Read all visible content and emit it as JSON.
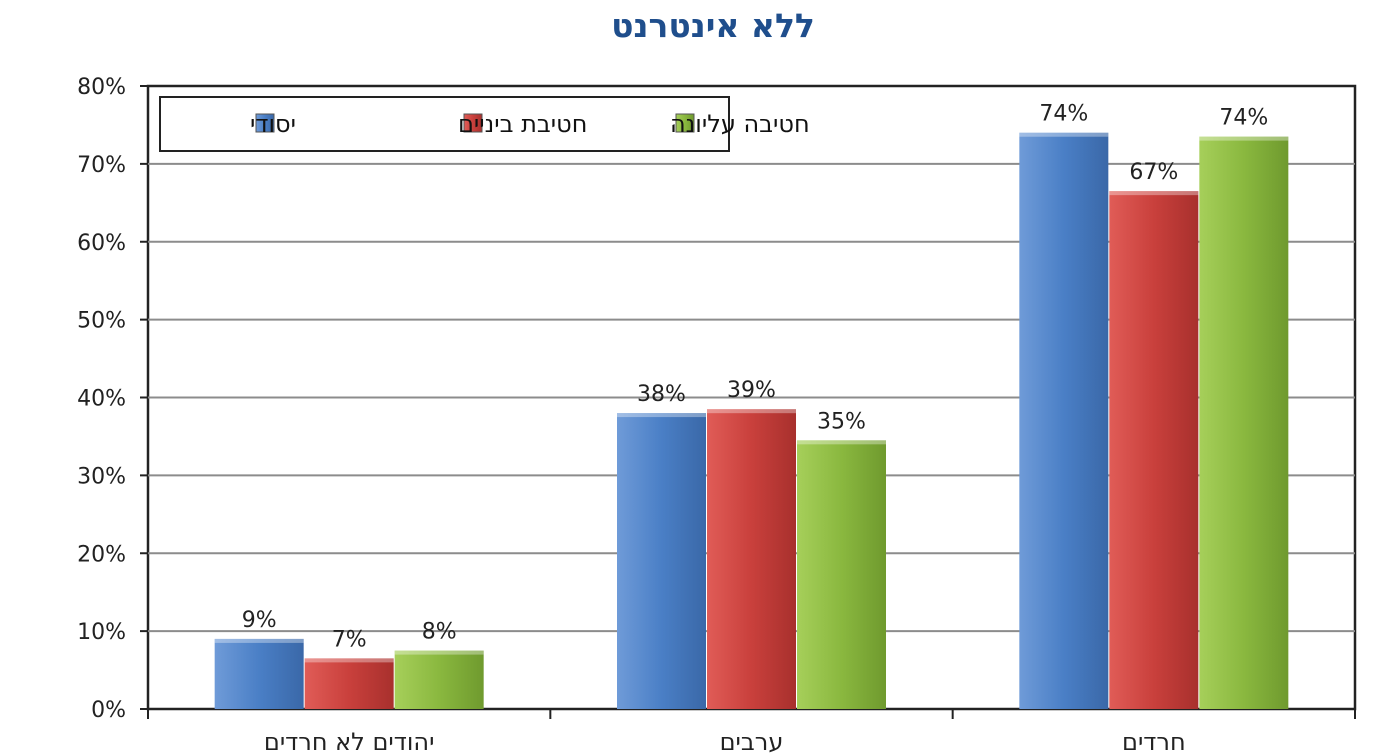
{
  "chart_data": {
    "type": "bar",
    "title": "ללא אינטרנט",
    "categories": [
      "יהודים לא חרדים",
      "ערבים",
      "חרדים"
    ],
    "series": [
      {
        "name": "יסודי",
        "values": [
          9,
          38,
          74
        ],
        "labels": [
          "9%",
          "38%",
          "74%"
        ],
        "color": "#4a7fc6"
      },
      {
        "name": "חטיבת ביניים",
        "values": [
          6.5,
          38.5,
          66.5
        ],
        "labels": [
          "7%",
          "39%",
          "67%"
        ],
        "color": "#c9403c"
      },
      {
        "name": "חטיבה עליונה",
        "values": [
          7.5,
          34.5,
          73.5
        ],
        "labels": [
          "8%",
          "35%",
          "74%"
        ],
        "color": "#8ab83f"
      }
    ],
    "yticks": [
      "0%",
      "10%",
      "20%",
      "30%",
      "40%",
      "50%",
      "60%",
      "70%",
      "80%"
    ],
    "ylim": [
      0,
      80
    ],
    "grid": true,
    "legend_position": "top-left"
  }
}
